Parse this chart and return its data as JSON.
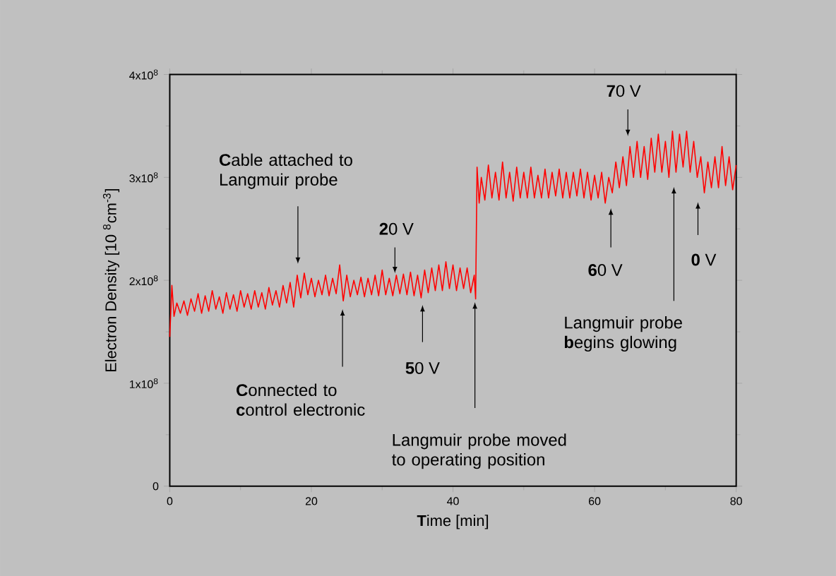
{
  "chart_data": {
    "type": "line",
    "xlabel": "**T**ime [min]",
    "ylabel": "Electron Density [10 $^{8}$cm$^{-3}$]",
    "color": "#ff0000",
    "xlim": [
      0,
      80
    ],
    "ylim": [
      0,
      400000000
    ],
    "xticks": [
      0,
      20,
      40,
      60,
      80
    ],
    "yticks": [
      0,
      {
        "value": 100000000,
        "label": "1x10$^{8}$"
      },
      {
        "value": 200000000,
        "label": "2x10$^{8}$"
      },
      {
        "value": 300000000,
        "label": "3x10$^{8}$"
      },
      {
        "value": 400000000,
        "label": "4x10$^{8}$"
      }
    ],
    "x": [
      0,
      0.3,
      0.6,
      1,
      1.5,
      2,
      2.5,
      3,
      3.5,
      4,
      4.5,
      5,
      5.5,
      6,
      6.5,
      7,
      7.5,
      8,
      8.5,
      9,
      9.5,
      10,
      10.5,
      11,
      11.5,
      12,
      12.5,
      13,
      13.5,
      14,
      14.5,
      15,
      15.5,
      16,
      16.5,
      17,
      17.5,
      18,
      18.5,
      19,
      19.5,
      20,
      20.5,
      21,
      21.5,
      22,
      22.5,
      23,
      23.5,
      24,
      24.5,
      25,
      25.5,
      26,
      26.5,
      27,
      27.5,
      28,
      28.5,
      29,
      29.5,
      30,
      30.5,
      31,
      31.5,
      32,
      32.5,
      33,
      33.5,
      34,
      34.5,
      35,
      35.5,
      36,
      36.5,
      37,
      37.5,
      38,
      38.5,
      39,
      39.5,
      40,
      40.5,
      41,
      41.5,
      42,
      42.5,
      43,
      43.2,
      43.4,
      43.7,
      44,
      44.5,
      45,
      45.5,
      46,
      46.5,
      47,
      47.5,
      48,
      48.5,
      49,
      49.5,
      50,
      50.5,
      51,
      51.5,
      52,
      52.5,
      53,
      53.5,
      54,
      54.5,
      55,
      55.5,
      56,
      56.5,
      57,
      57.5,
      58,
      58.5,
      59,
      59.5,
      60,
      60.5,
      61,
      61.5,
      62,
      62.5,
      63,
      63.5,
      64,
      64.5,
      65,
      65.5,
      66,
      66.5,
      67,
      67.5,
      68,
      68.5,
      69,
      69.5,
      70,
      70.5,
      71,
      71.5,
      72,
      72.5,
      73,
      73.5,
      74,
      74.5,
      75,
      75.5,
      76,
      76.5,
      77,
      77.5,
      78,
      78.5,
      79,
      79.5,
      80
    ],
    "values": [
      145000000.0,
      195000000.0,
      165000000.0,
      178000000.0,
      168000000.0,
      180000000.0,
      166000000.0,
      182000000.0,
      170000000.0,
      187000000.0,
      168000000.0,
      185000000.0,
      170000000.0,
      190000000.0,
      172000000.0,
      184000000.0,
      168000000.0,
      188000000.0,
      172000000.0,
      186000000.0,
      170000000.0,
      190000000.0,
      174000000.0,
      187000000.0,
      172000000.0,
      190000000.0,
      174000000.0,
      188000000.0,
      172000000.0,
      193000000.0,
      176000000.0,
      190000000.0,
      174000000.0,
      195000000.0,
      178000000.0,
      198000000.0,
      174000000.0,
      205000000.0,
      183000000.0,
      207000000.0,
      186000000.0,
      202000000.0,
      184000000.0,
      200000000.0,
      186000000.0,
      205000000.0,
      185000000.0,
      202000000.0,
      187000000.0,
      215000000.0,
      180000000.0,
      205000000.0,
      184000000.0,
      200000000.0,
      186000000.0,
      203000000.0,
      184000000.0,
      202000000.0,
      186000000.0,
      205000000.0,
      185000000.0,
      210000000.0,
      186000000.0,
      202000000.0,
      185000000.0,
      205000000.0,
      187000000.0,
      206000000.0,
      186000000.0,
      208000000.0,
      185000000.0,
      205000000.0,
      183000000.0,
      210000000.0,
      188000000.0,
      212000000.0,
      190000000.0,
      215000000.0,
      190000000.0,
      218000000.0,
      192000000.0,
      215000000.0,
      190000000.0,
      212000000.0,
      192000000.0,
      212000000.0,
      188000000.0,
      205000000.0,
      182000000.0,
      310000000.0,
      275000000.0,
      300000000.0,
      278000000.0,
      312000000.0,
      280000000.0,
      305000000.0,
      278000000.0,
      315000000.0,
      280000000.0,
      305000000.0,
      277000000.0,
      310000000.0,
      280000000.0,
      305000000.0,
      280000000.0,
      310000000.0,
      280000000.0,
      302000000.0,
      280000000.0,
      308000000.0,
      280000000.0,
      305000000.0,
      282000000.0,
      308000000.0,
      280000000.0,
      305000000.0,
      280000000.0,
      305000000.0,
      282000000.0,
      308000000.0,
      280000000.0,
      305000000.0,
      278000000.0,
      302000000.0,
      280000000.0,
      305000000.0,
      275000000.0,
      300000000.0,
      285000000.0,
      315000000.0,
      290000000.0,
      320000000.0,
      292000000.0,
      330000000.0,
      300000000.0,
      335000000.0,
      300000000.0,
      330000000.0,
      298000000.0,
      338000000.0,
      305000000.0,
      342000000.0,
      305000000.0,
      335000000.0,
      300000000.0,
      345000000.0,
      305000000.0,
      342000000.0,
      310000000.0,
      345000000.0,
      305000000.0,
      335000000.0,
      300000000.0,
      320000000.0,
      285000000.0,
      315000000.0,
      290000000.0,
      320000000.0,
      290000000.0,
      330000000.0,
      292000000.0,
      320000000.0,
      288000000.0,
      312000000.0
    ],
    "annotations": [
      "**C**able attached to Langmuir probe",
      "**2**0 V",
      "**C**onnected to **c**ontrol electronic",
      "**5**0 V",
      "Langmuir probe moved to operating position",
      "**6**0 V",
      "**7**0 V",
      "Langmuir probe **b**egins glowing",
      "**0** V"
    ]
  }
}
